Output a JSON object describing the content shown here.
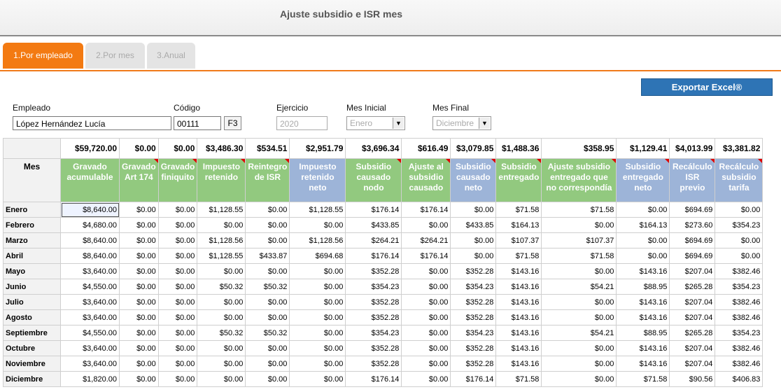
{
  "window": {
    "title": "Ajuste subsidio e ISR mes"
  },
  "tabs": [
    {
      "label": "1.Por empleado"
    },
    {
      "label": "2.Por mes"
    },
    {
      "label": "3.Anual"
    }
  ],
  "export_label": "Exportar Excel®",
  "form": {
    "empleado_label": "Empleado",
    "empleado_value": "López Hernández Lucía",
    "codigo_label": "Código",
    "codigo_value": "00111",
    "f3_label": "F3",
    "ejercicio_label": "Ejercicio",
    "ejercicio_value": "2020",
    "mes_inicial_label": "Mes Inicial",
    "mes_inicial_value": "Enero",
    "mes_final_label": "Mes Final",
    "mes_final_value": "Diciembre"
  },
  "table": {
    "mes_header": "Mes",
    "totals": [
      "$59,720.00",
      "$0.00",
      "$0.00",
      "$3,486.30",
      "$534.51",
      "$2,951.79",
      "$3,696.34",
      "$616.49",
      "$3,079.85",
      "$1,488.36",
      "$358.95",
      "$1,129.41",
      "$4,013.99",
      "$3,381.82"
    ],
    "headers": [
      "Gravado acumulable",
      "Gravado Art 174",
      "Gravado finiquito",
      "Impuesto retenido",
      "Reintegro de ISR",
      "Impuesto retenido neto",
      "Subsidio causado nodo",
      "Ajuste al subsidio causado",
      "Subsidio causado neto",
      "Subsidio entregado",
      "Ajuste subsidio entregado que no correspondía",
      "Subsidio entregado neto",
      "Recálculo ISR previo",
      "Recálculo subsidio tarifa"
    ],
    "rows": [
      {
        "mes": "Enero",
        "values": [
          "$8,640.00",
          "$0.00",
          "$0.00",
          "$1,128.55",
          "$0.00",
          "$1,128.55",
          "$176.14",
          "$176.14",
          "$0.00",
          "$71.58",
          "$71.58",
          "$0.00",
          "$694.69",
          "$0.00"
        ]
      },
      {
        "mes": "Febrero",
        "values": [
          "$4,680.00",
          "$0.00",
          "$0.00",
          "$0.00",
          "$0.00",
          "$0.00",
          "$433.85",
          "$0.00",
          "$433.85",
          "$164.13",
          "$0.00",
          "$164.13",
          "$273.60",
          "$354.23"
        ]
      },
      {
        "mes": "Marzo",
        "values": [
          "$8,640.00",
          "$0.00",
          "$0.00",
          "$1,128.56",
          "$0.00",
          "$1,128.56",
          "$264.21",
          "$264.21",
          "$0.00",
          "$107.37",
          "$107.37",
          "$0.00",
          "$694.69",
          "$0.00"
        ]
      },
      {
        "mes": "Abril",
        "values": [
          "$8,640.00",
          "$0.00",
          "$0.00",
          "$1,128.55",
          "$433.87",
          "$694.68",
          "$176.14",
          "$176.14",
          "$0.00",
          "$71.58",
          "$71.58",
          "$0.00",
          "$694.69",
          "$0.00"
        ]
      },
      {
        "mes": "Mayo",
        "values": [
          "$3,640.00",
          "$0.00",
          "$0.00",
          "$0.00",
          "$0.00",
          "$0.00",
          "$352.28",
          "$0.00",
          "$352.28",
          "$143.16",
          "$0.00",
          "$143.16",
          "$207.04",
          "$382.46"
        ]
      },
      {
        "mes": "Junio",
        "values": [
          "$4,550.00",
          "$0.00",
          "$0.00",
          "$50.32",
          "$50.32",
          "$0.00",
          "$354.23",
          "$0.00",
          "$354.23",
          "$143.16",
          "$54.21",
          "$88.95",
          "$265.28",
          "$354.23"
        ]
      },
      {
        "mes": "Julio",
        "values": [
          "$3,640.00",
          "$0.00",
          "$0.00",
          "$0.00",
          "$0.00",
          "$0.00",
          "$352.28",
          "$0.00",
          "$352.28",
          "$143.16",
          "$0.00",
          "$143.16",
          "$207.04",
          "$382.46"
        ]
      },
      {
        "mes": "Agosto",
        "values": [
          "$3,640.00",
          "$0.00",
          "$0.00",
          "$0.00",
          "$0.00",
          "$0.00",
          "$352.28",
          "$0.00",
          "$352.28",
          "$143.16",
          "$0.00",
          "$143.16",
          "$207.04",
          "$382.46"
        ]
      },
      {
        "mes": "Septiembre",
        "values": [
          "$4,550.00",
          "$0.00",
          "$0.00",
          "$50.32",
          "$50.32",
          "$0.00",
          "$354.23",
          "$0.00",
          "$354.23",
          "$143.16",
          "$54.21",
          "$88.95",
          "$265.28",
          "$354.23"
        ]
      },
      {
        "mes": "Octubre",
        "values": [
          "$3,640.00",
          "$0.00",
          "$0.00",
          "$0.00",
          "$0.00",
          "$0.00",
          "$352.28",
          "$0.00",
          "$352.28",
          "$143.16",
          "$0.00",
          "$143.16",
          "$207.04",
          "$382.46"
        ]
      },
      {
        "mes": "Noviembre",
        "values": [
          "$3,640.00",
          "$0.00",
          "$0.00",
          "$0.00",
          "$0.00",
          "$0.00",
          "$352.28",
          "$0.00",
          "$352.28",
          "$143.16",
          "$0.00",
          "$143.16",
          "$207.04",
          "$382.46"
        ]
      },
      {
        "mes": "Diciembre",
        "values": [
          "$1,820.00",
          "$0.00",
          "$0.00",
          "$0.00",
          "$0.00",
          "$0.00",
          "$176.14",
          "$0.00",
          "$176.14",
          "$71.58",
          "$0.00",
          "$71.58",
          "$90.56",
          "$406.83"
        ]
      }
    ]
  },
  "colors": {
    "accent": "#f37a12",
    "green_header": "#92c97f",
    "blue_header": "#9db4d8",
    "export": "#2e74b5"
  }
}
